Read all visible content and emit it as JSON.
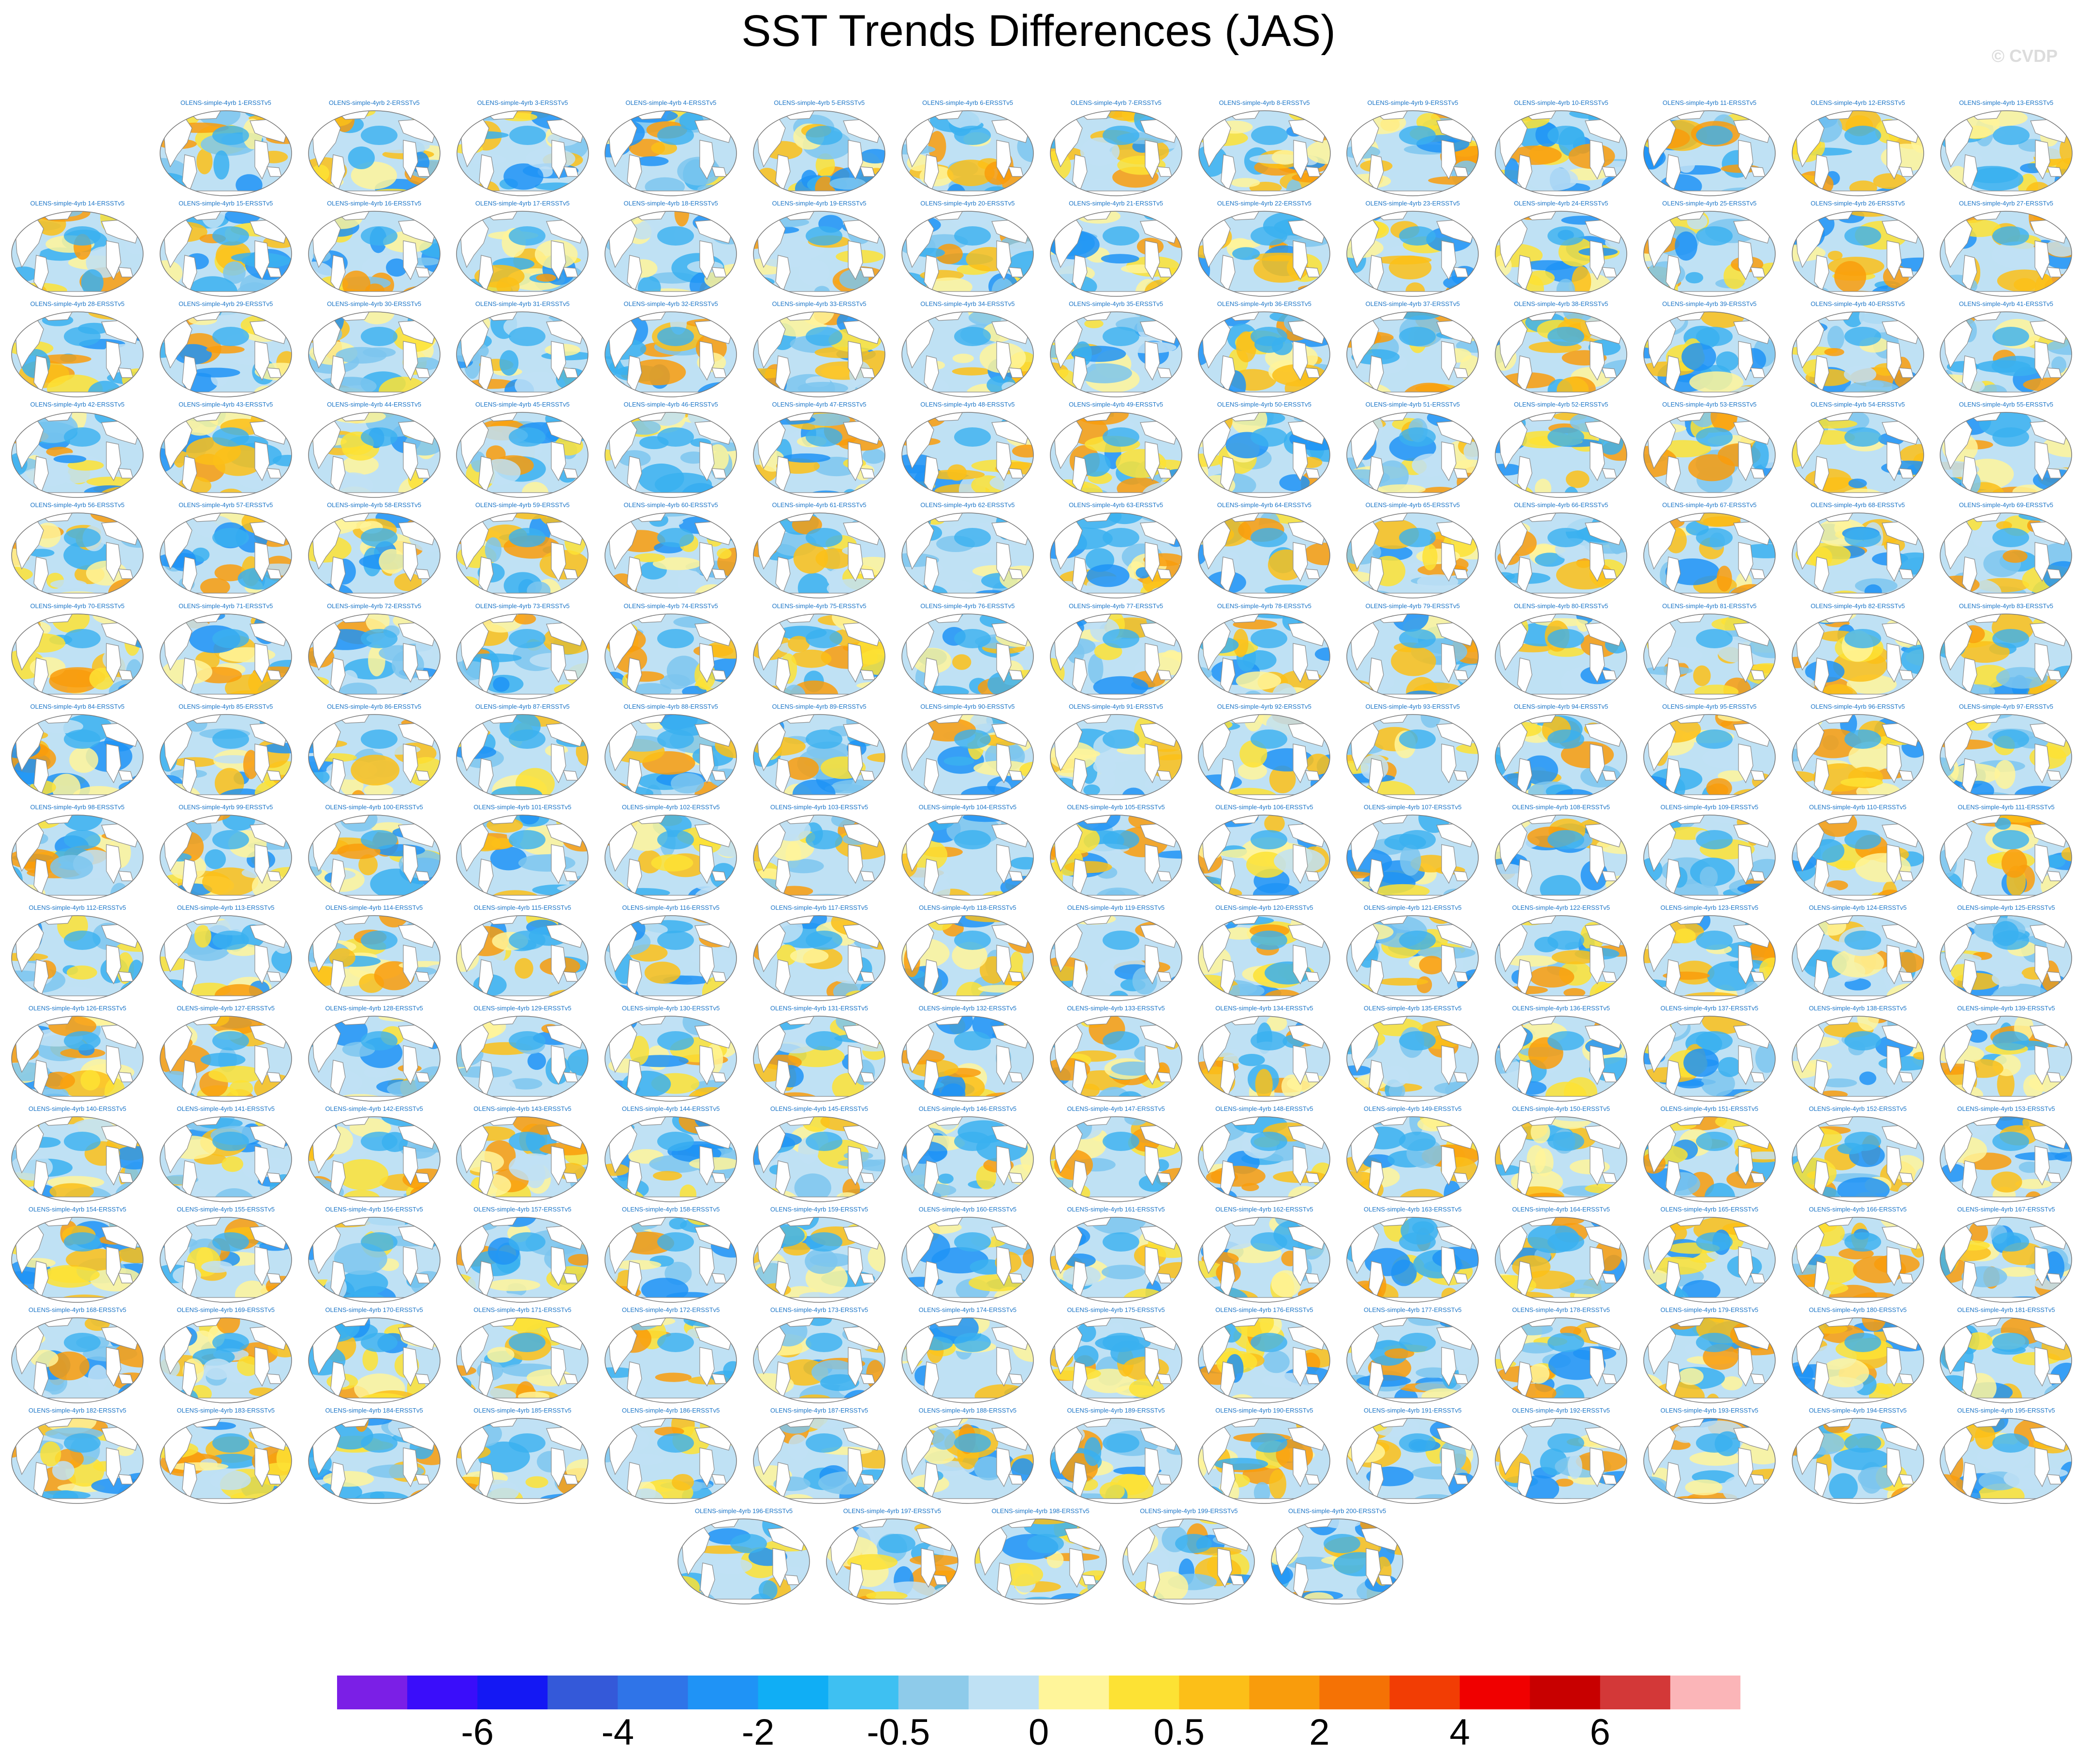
{
  "figure": {
    "title": "SST Trends Differences (JAS)",
    "watermark": "© CVDP"
  },
  "panels": {
    "label_prefix": "OLENS-simple-4yrb",
    "label_suffix": "-ERSSTv5",
    "count": 200,
    "row_counts": [
      13,
      14,
      14,
      14,
      14,
      14,
      14,
      14,
      14,
      14,
      14,
      14,
      14,
      14,
      5
    ],
    "map_colors": {
      "land": "#ffffff",
      "coast": "#8a8a8a",
      "border": "#777777"
    }
  },
  "colorbar": {
    "colors": [
      "#7b1fe6",
      "#3a0dfa",
      "#1418f4",
      "#3459d9",
      "#2f74e8",
      "#1f93f6",
      "#10aef5",
      "#3ec0f2",
      "#8ecbea",
      "#bfe1f4",
      "#fff59a",
      "#fde234",
      "#fcbf18",
      "#f99c0c",
      "#f57205",
      "#f23d04",
      "#f00000",
      "#c80000",
      "#d33838",
      "#fbb5b8"
    ],
    "tick_labels": [
      {
        "text": "-6",
        "after_box": 2
      },
      {
        "text": "-4",
        "after_box": 4
      },
      {
        "text": "-2",
        "after_box": 6
      },
      {
        "text": "-0.5",
        "after_box": 8
      },
      {
        "text": "0",
        "after_box": 10
      },
      {
        "text": "0.5",
        "after_box": 12
      },
      {
        "text": "2",
        "after_box": 14
      },
      {
        "text": "4",
        "after_box": 16
      },
      {
        "text": "6",
        "after_box": 18
      }
    ]
  }
}
